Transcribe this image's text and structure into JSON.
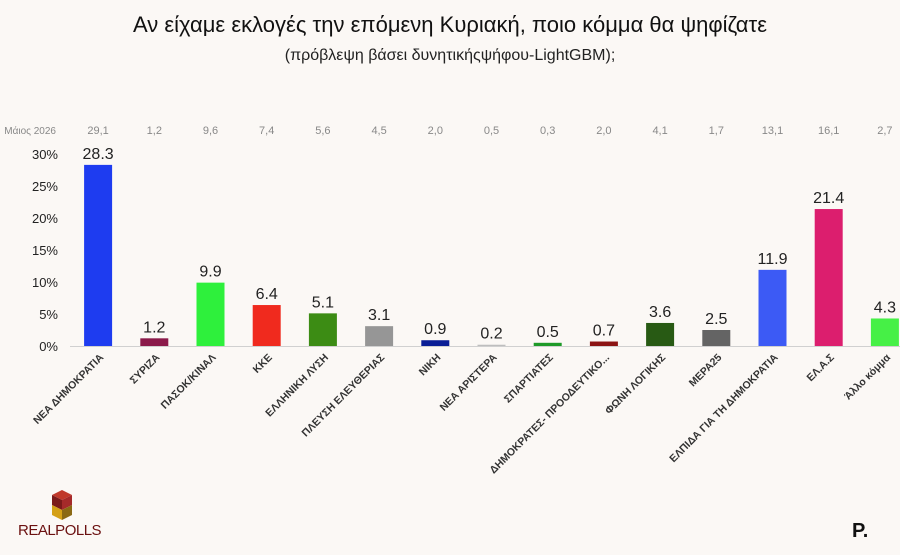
{
  "title": "Αν είχαμε εκλογές την επόμενη Κυριακή, ποιο κόμμα θα ψηφίζατε",
  "subtitle": "(πρόβλεψη βάσει δυνητικήςψήφου-LightGBM);",
  "brand": {
    "left_logo": "REALPOLLS",
    "right_logo": "P."
  },
  "chart_data": {
    "type": "bar",
    "categories": [
      "ΝΕΑ ΔΗΜΟΚΡΑΤΙΑ",
      "ΣΥΡΙΖΑ",
      "ΠΑΣΟΚ/ΚΙΝΑΛ",
      "ΚΚΕ",
      "ΕΛΛΗΝΙΚΗ ΛΥΣΗ",
      "ΠΛΕΥΣΗ ΕΛΕΥΘΕΡΙΑΣ",
      "ΝΙΚΗ",
      "ΝΕΑ ΑΡΙΣΤΕΡΑ",
      "ΣΠΑΡΤΙΑΤΕΣ",
      "ΔΗΜΟΚΡΑΤΕΣ- ΠΡΟΟΔΕΥΤΙΚΟ...",
      "ΦΩΝΗ ΛΟΓΙΚΗΣ",
      "ΜΕΡΑ25",
      "ΕΛΠΙΔΑ ΓΙΑ ΤΗ ΔΗΜΟΚΡΑΤΙΑ",
      "ΕΛ.Α.Σ",
      "Άλλο κόμμα"
    ],
    "values": [
      28.3,
      1.2,
      9.9,
      6.4,
      5.1,
      3.1,
      0.9,
      0.2,
      0.5,
      0.7,
      3.6,
      2.5,
      11.9,
      21.4,
      4.3
    ],
    "value_labels": [
      "28.3",
      "1.2",
      "9.9",
      "6.4",
      "5.1",
      "3.1",
      "0.9",
      "0.2",
      "0.5",
      "0.7",
      "3.6",
      "2.5",
      "11.9",
      "21.4",
      "4.3"
    ],
    "colors": [
      "#1e3cf0",
      "#8b1a4a",
      "#2ef03c",
      "#f02a1e",
      "#3c8c14",
      "#969696",
      "#0a1e96",
      "#bebebe",
      "#1e9a28",
      "#8c1414",
      "#285a14",
      "#646464",
      "#3c5af5",
      "#dc1e6e",
      "#46f046"
    ],
    "reference_row": {
      "label": "Μάιος 2026",
      "values": [
        "29,1",
        "1,2",
        "9,6",
        "7,4",
        "5,6",
        "4,5",
        "2,0",
        "0,5",
        "0,3",
        "2,0",
        "4,1",
        "1,7",
        "13,1",
        "16,1",
        "2,7"
      ]
    },
    "yticks": [
      "0%",
      "5%",
      "10%",
      "15%",
      "20%",
      "25%",
      "30%"
    ],
    "ylim": [
      0,
      30
    ],
    "ytick_values": [
      0,
      5,
      10,
      15,
      20,
      25,
      30
    ],
    "grid": false,
    "legend": "none"
  }
}
